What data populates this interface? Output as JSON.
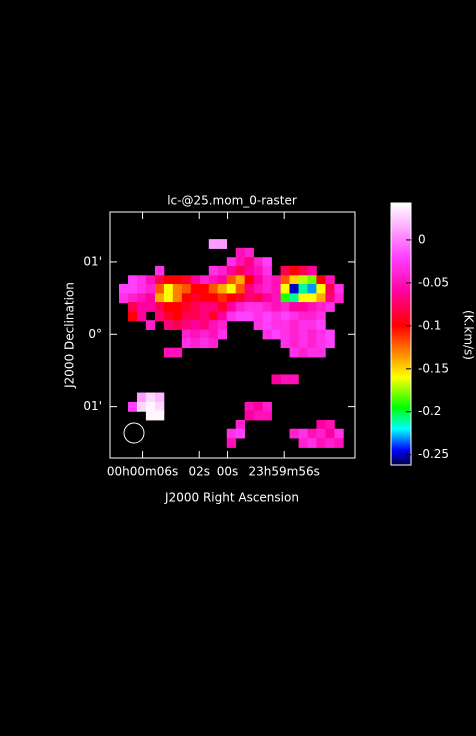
{
  "chart_data": {
    "type": "heatmap",
    "title": "lc-@25.mom_0-raster",
    "x_label": "J2000 Right Ascension",
    "y_label": "J2000 Declination",
    "colorbar_label": "(K.km/s)",
    "xlim": [
      8.3,
      -9.0
    ],
    "xticks": [
      {
        "value": 6,
        "label": "00h00m06s"
      },
      {
        "value": 2,
        "label": "02s"
      },
      {
        "value": 0,
        "label": "00s"
      },
      {
        "value": -4,
        "label": "23h59m56s"
      }
    ],
    "ylim": [
      -1.71,
      1.69
    ],
    "yticks": [
      {
        "value": 1,
        "label": "01'"
      },
      {
        "value": 0,
        "label": "0°"
      },
      {
        "value": -1,
        "label": "01'"
      }
    ],
    "clim": [
      -0.262,
      0.043
    ],
    "cticks": [
      0,
      -0.05,
      -0.1,
      -0.15,
      -0.2,
      -0.25
    ],
    "colormap": [
      {
        "at": -0.262,
        "color": "#000040"
      },
      {
        "at": -0.245,
        "color": "#0000ff"
      },
      {
        "at": -0.22,
        "color": "#00ffff"
      },
      {
        "at": -0.195,
        "color": "#00ff00"
      },
      {
        "at": -0.16,
        "color": "#ffff00"
      },
      {
        "at": -0.13,
        "color": "#ff8000"
      },
      {
        "at": -0.1,
        "color": "#ff0000"
      },
      {
        "at": -0.06,
        "color": "#ff00a0"
      },
      {
        "at": -0.02,
        "color": "#ff40ff"
      },
      {
        "at": 0.01,
        "color": "#ff9cff"
      },
      {
        "at": 0.043,
        "color": "#ffffff"
      }
    ],
    "x": [
      7.98,
      7.35,
      6.71,
      6.08,
      5.45,
      4.81,
      4.18,
      3.55,
      2.91,
      2.28,
      1.64,
      1.01,
      0.38,
      -0.26,
      -0.89,
      -1.52,
      -2.16,
      -2.79,
      -3.42,
      -4.06,
      -4.69,
      -5.33,
      -5.96,
      -6.59,
      -7.23,
      -7.86,
      -8.49
    ],
    "y": [
      1.63,
      1.5,
      1.38,
      1.25,
      1.13,
      1.0,
      0.88,
      0.75,
      0.63,
      0.5,
      0.38,
      0.25,
      0.13,
      0.0,
      -0.12,
      -0.25,
      -0.37,
      -0.5,
      -0.62,
      -0.75,
      -0.87,
      -1.0,
      -1.12,
      -1.25,
      -1.37,
      -1.5,
      -1.62
    ],
    "z": [
      [
        null,
        null,
        null,
        null,
        null,
        null,
        null,
        null,
        null,
        null,
        null,
        null,
        null,
        null,
        null,
        null,
        null,
        null,
        null,
        null,
        null,
        null,
        null,
        null,
        null,
        null,
        null
      ],
      [
        null,
        null,
        null,
        null,
        null,
        null,
        null,
        null,
        null,
        null,
        null,
        null,
        null,
        null,
        null,
        null,
        null,
        null,
        null,
        null,
        null,
        null,
        null,
        null,
        null,
        null,
        null
      ],
      [
        null,
        null,
        null,
        null,
        null,
        null,
        null,
        null,
        null,
        null,
        null,
        null,
        null,
        null,
        null,
        null,
        null,
        null,
        null,
        null,
        null,
        null,
        null,
        null,
        null,
        null,
        null
      ],
      [
        null,
        null,
        null,
        null,
        null,
        null,
        null,
        null,
        null,
        null,
        null,
        0.01,
        0.01,
        null,
        null,
        null,
        null,
        null,
        null,
        null,
        null,
        null,
        null,
        null,
        null,
        null,
        null
      ],
      [
        null,
        null,
        null,
        null,
        null,
        null,
        null,
        null,
        null,
        null,
        null,
        null,
        null,
        null,
        -0.05,
        -0.04,
        null,
        null,
        null,
        null,
        null,
        null,
        null,
        null,
        null,
        null,
        null
      ],
      [
        null,
        null,
        null,
        null,
        null,
        null,
        null,
        null,
        null,
        null,
        null,
        null,
        null,
        -0.03,
        -0.05,
        -0.07,
        -0.04,
        -0.02,
        null,
        null,
        null,
        null,
        null,
        null,
        null,
        null,
        null
      ],
      [
        null,
        null,
        null,
        null,
        null,
        -0.03,
        null,
        null,
        null,
        null,
        null,
        -0.03,
        -0.04,
        -0.06,
        -0.08,
        -0.06,
        -0.05,
        -0.03,
        null,
        -0.08,
        -0.1,
        -0.08,
        -0.06,
        null,
        null,
        null,
        null
      ],
      [
        null,
        null,
        -0.02,
        -0.03,
        -0.05,
        -0.08,
        -0.1,
        -0.1,
        -0.09,
        -0.06,
        -0.04,
        -0.05,
        -0.06,
        -0.12,
        -0.14,
        -0.1,
        -0.06,
        -0.04,
        -0.05,
        -0.12,
        -0.15,
        -0.17,
        -0.18,
        -0.1,
        -0.05,
        null,
        null
      ],
      [
        null,
        -0.02,
        -0.02,
        -0.03,
        -0.04,
        -0.12,
        -0.16,
        -0.13,
        -0.12,
        -0.1,
        -0.1,
        -0.12,
        -0.14,
        -0.16,
        -0.12,
        -0.07,
        -0.05,
        -0.04,
        -0.05,
        -0.16,
        -0.25,
        -0.21,
        -0.23,
        -0.16,
        -0.08,
        -0.03,
        null
      ],
      [
        null,
        -0.03,
        -0.04,
        -0.05,
        -0.06,
        -0.14,
        -0.16,
        -0.13,
        -0.1,
        -0.09,
        -0.1,
        -0.1,
        -0.11,
        -0.1,
        -0.09,
        -0.07,
        -0.08,
        -0.06,
        -0.05,
        -0.19,
        -0.21,
        -0.16,
        -0.16,
        -0.14,
        -0.07,
        -0.04,
        null
      ],
      [
        null,
        null,
        -0.08,
        -0.06,
        -0.06,
        -0.08,
        -0.1,
        -0.1,
        -0.09,
        -0.08,
        -0.07,
        -0.07,
        -0.09,
        -0.06,
        -0.04,
        -0.03,
        -0.03,
        -0.04,
        -0.05,
        -0.04,
        -0.06,
        -0.06,
        -0.05,
        -0.04,
        -0.03,
        null,
        null
      ],
      [
        null,
        null,
        -0.1,
        -0.06,
        null,
        -0.07,
        -0.09,
        -0.1,
        -0.08,
        -0.08,
        -0.07,
        -0.09,
        -0.06,
        -0.03,
        -0.02,
        -0.02,
        -0.03,
        -0.02,
        -0.03,
        -0.02,
        -0.03,
        -0.04,
        -0.04,
        -0.03,
        null,
        null,
        null
      ],
      [
        null,
        null,
        null,
        null,
        -0.04,
        null,
        -0.07,
        -0.08,
        -0.07,
        -0.06,
        -0.07,
        -0.05,
        -0.04,
        null,
        null,
        null,
        -0.03,
        -0.02,
        -0.03,
        -0.03,
        -0.04,
        -0.03,
        -0.03,
        -0.02,
        null,
        null,
        null
      ],
      [
        null,
        null,
        null,
        null,
        null,
        null,
        null,
        null,
        -0.04,
        -0.05,
        -0.04,
        -0.05,
        -0.03,
        null,
        null,
        null,
        null,
        -0.03,
        -0.02,
        -0.03,
        -0.04,
        -0.03,
        -0.04,
        -0.03,
        -0.02,
        null,
        null
      ],
      [
        null,
        null,
        null,
        null,
        null,
        null,
        null,
        null,
        -0.03,
        -0.04,
        -0.03,
        -0.04,
        null,
        null,
        null,
        null,
        null,
        null,
        null,
        -0.03,
        -0.04,
        -0.03,
        -0.04,
        -0.03,
        -0.02,
        null,
        null
      ],
      [
        null,
        null,
        null,
        null,
        null,
        null,
        -0.05,
        -0.05,
        null,
        null,
        null,
        null,
        null,
        null,
        null,
        null,
        null,
        null,
        null,
        null,
        -0.03,
        -0.04,
        -0.03,
        -0.03,
        null,
        null,
        null
      ],
      [
        null,
        null,
        null,
        null,
        null,
        null,
        null,
        null,
        null,
        null,
        null,
        null,
        null,
        null,
        null,
        null,
        null,
        null,
        null,
        null,
        null,
        null,
        null,
        null,
        null,
        null,
        null
      ],
      [
        null,
        null,
        null,
        null,
        null,
        null,
        null,
        null,
        null,
        null,
        null,
        null,
        null,
        null,
        null,
        null,
        null,
        null,
        null,
        null,
        null,
        null,
        null,
        null,
        null,
        null,
        null
      ],
      [
        null,
        null,
        null,
        null,
        null,
        null,
        null,
        null,
        null,
        null,
        null,
        null,
        null,
        null,
        null,
        null,
        null,
        null,
        -0.06,
        -0.05,
        -0.05,
        null,
        null,
        null,
        null,
        null,
        null
      ],
      [
        null,
        null,
        null,
        null,
        null,
        null,
        null,
        null,
        null,
        null,
        null,
        null,
        null,
        null,
        null,
        null,
        null,
        null,
        null,
        null,
        null,
        null,
        null,
        null,
        null,
        null,
        null
      ],
      [
        null,
        null,
        null,
        0.01,
        0.03,
        0.02,
        null,
        null,
        null,
        null,
        null,
        null,
        null,
        null,
        null,
        null,
        null,
        null,
        null,
        null,
        null,
        null,
        null,
        null,
        null,
        null,
        null
      ],
      [
        null,
        null,
        -0.02,
        0.03,
        0.04,
        0.03,
        null,
        null,
        null,
        null,
        null,
        null,
        null,
        null,
        null,
        -0.05,
        -0.06,
        -0.04,
        null,
        null,
        null,
        null,
        null,
        null,
        null,
        null,
        null
      ],
      [
        null,
        null,
        null,
        null,
        0.04,
        0.04,
        null,
        null,
        null,
        null,
        null,
        null,
        null,
        null,
        null,
        -0.06,
        -0.05,
        -0.05,
        null,
        null,
        null,
        null,
        null,
        null,
        null,
        null,
        null
      ],
      [
        null,
        null,
        null,
        null,
        null,
        null,
        null,
        null,
        null,
        null,
        null,
        null,
        null,
        null,
        -0.04,
        null,
        null,
        null,
        null,
        null,
        null,
        null,
        null,
        -0.06,
        -0.05,
        null,
        null
      ],
      [
        null,
        null,
        null,
        null,
        null,
        null,
        null,
        null,
        null,
        null,
        null,
        null,
        null,
        -0.03,
        -0.02,
        null,
        null,
        null,
        null,
        null,
        -0.04,
        -0.03,
        -0.05,
        -0.04,
        -0.06,
        -0.03,
        null
      ],
      [
        null,
        null,
        null,
        null,
        null,
        null,
        null,
        null,
        null,
        null,
        null,
        null,
        null,
        -0.05,
        null,
        null,
        null,
        null,
        null,
        null,
        null,
        -0.04,
        -0.03,
        -0.05,
        -0.04,
        -0.05,
        null
      ],
      [
        null,
        null,
        null,
        null,
        null,
        null,
        null,
        null,
        null,
        null,
        null,
        null,
        null,
        null,
        null,
        null,
        null,
        null,
        null,
        null,
        null,
        null,
        null,
        null,
        null,
        null,
        null
      ]
    ]
  }
}
